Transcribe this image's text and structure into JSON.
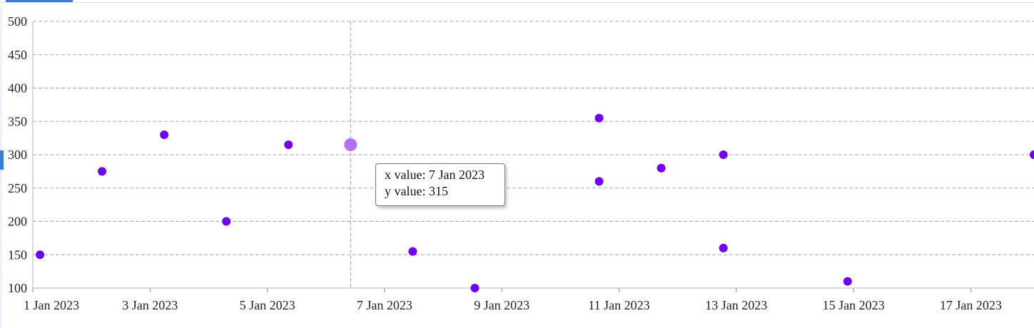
{
  "tooltip": {
    "x_label": "x value:",
    "x_value": "7 Jan 2023",
    "y_label": "y value:",
    "y_value": "315"
  },
  "chart_data": {
    "type": "scatter",
    "title": "",
    "xlabel": "",
    "ylabel": "",
    "grid": true,
    "xlim": [
      "2023-01-01",
      "2023-01-18"
    ],
    "ylim": [
      100,
      500
    ],
    "x_tick_labels": [
      "1 Jan 2023",
      "3 Jan 2023",
      "5 Jan 2023",
      "7 Jan 2023",
      "9 Jan 2023",
      "11 Jan 2023",
      "13 Jan 2023",
      "15 Jan 2023",
      "17 Jan 2023"
    ],
    "y_tick_labels": [
      "500",
      "450",
      "400",
      "350",
      "300",
      "250",
      "200",
      "150",
      "100"
    ],
    "point_color": "#7000f0",
    "highlight_color": "#a657f5",
    "highlighted": {
      "x": "2023-01-07",
      "y": 315
    },
    "points": [
      {
        "x": "2023-01-02",
        "y": 150
      },
      {
        "x": "2023-01-03",
        "y": 275
      },
      {
        "x": "2023-01-04",
        "y": 330
      },
      {
        "x": "2023-01-05",
        "y": 200
      },
      {
        "x": "2023-01-06",
        "y": 315
      },
      {
        "x": "2023-01-07",
        "y": 315
      },
      {
        "x": "2023-01-08",
        "y": 155
      },
      {
        "x": "2023-01-09",
        "y": 100
      },
      {
        "x": "2023-01-11",
        "y": 355
      },
      {
        "x": "2023-01-11",
        "y": 260
      },
      {
        "x": "2023-01-12",
        "y": 280
      },
      {
        "x": "2023-01-13",
        "y": 300
      },
      {
        "x": "2023-01-13",
        "y": 160
      },
      {
        "x": "2023-01-15",
        "y": 110
      },
      {
        "x": "2023-01-18",
        "y": 300
      }
    ]
  }
}
